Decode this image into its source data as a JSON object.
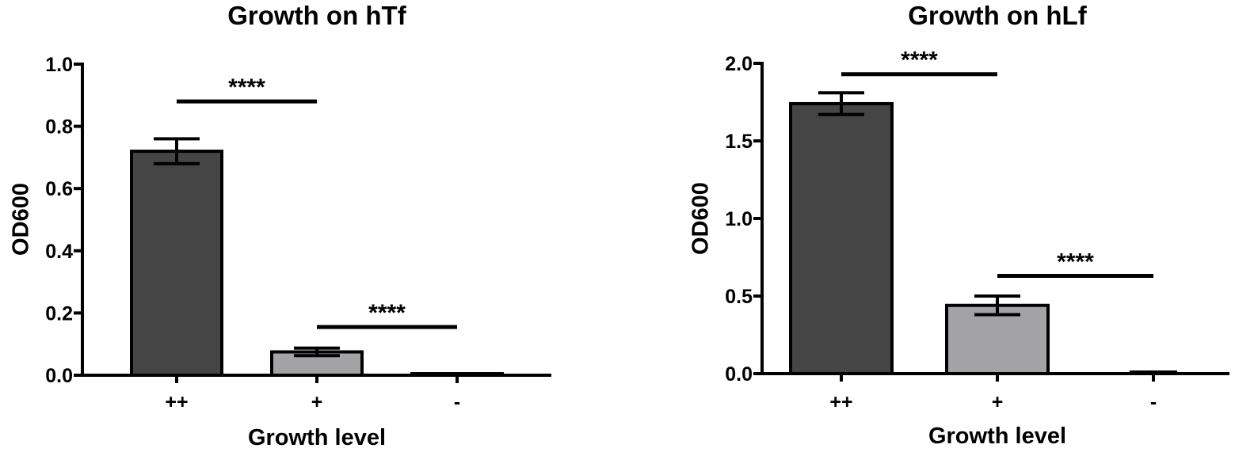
{
  "chart_data": [
    {
      "type": "bar",
      "title": "Growth on hTf",
      "xlabel": "Growth level",
      "ylabel": "OD600",
      "categories": [
        "++",
        "+",
        "-"
      ],
      "values": [
        0.72,
        0.075,
        0.005
      ],
      "errors": [
        0.04,
        0.012,
        0.0
      ],
      "ylim": [
        0,
        1.0
      ],
      "yticks": [
        0.0,
        0.2,
        0.4,
        0.6,
        0.8,
        1.0
      ],
      "ytick_labels": [
        "0.0",
        "0.2",
        "0.4",
        "0.6",
        "0.8",
        "1.0"
      ],
      "bar_colors": [
        "#454545",
        "#a3a3a6",
        "#454545"
      ],
      "significance": [
        {
          "from": 0,
          "to": 1,
          "y": 0.88,
          "label": "****"
        },
        {
          "from": 1,
          "to": 2,
          "y": 0.155,
          "label": "****"
        }
      ]
    },
    {
      "type": "bar",
      "title": "Growth on hLf",
      "xlabel": "Growth level",
      "ylabel": "OD600",
      "categories": [
        "++",
        "+",
        "-"
      ],
      "values": [
        1.74,
        0.44,
        0.0
      ],
      "errors": [
        0.07,
        0.06,
        0.0
      ],
      "ylim": [
        0,
        2.0
      ],
      "yticks": [
        0.0,
        0.5,
        1.0,
        1.5,
        2.0
      ],
      "ytick_labels": [
        "0.0",
        "0.5",
        "1.0",
        "1.5",
        "2.0"
      ],
      "bar_colors": [
        "#454545",
        "#a3a3a6",
        "#454545"
      ],
      "significance": [
        {
          "from": 0,
          "to": 1,
          "y": 1.93,
          "label": "****"
        },
        {
          "from": 1,
          "to": 2,
          "y": 0.63,
          "label": "****"
        }
      ]
    }
  ]
}
